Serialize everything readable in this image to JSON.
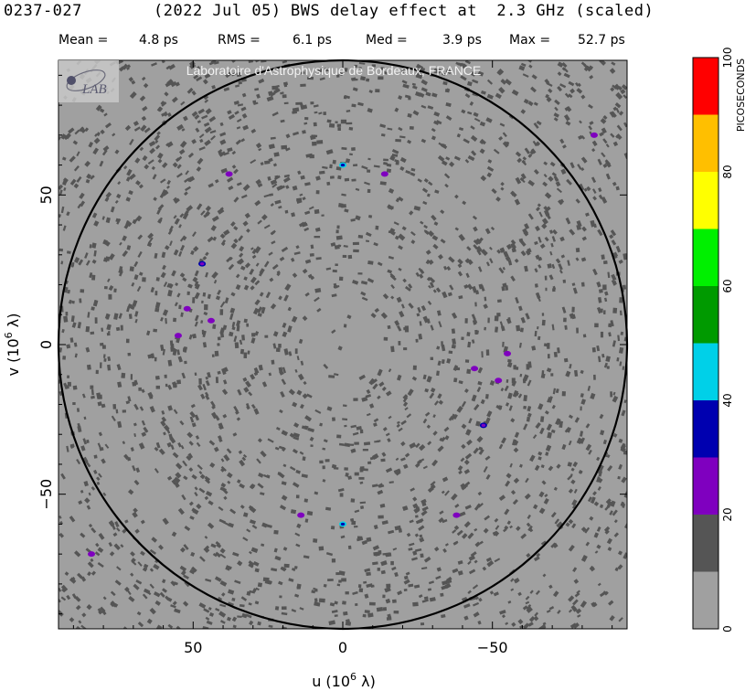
{
  "header": {
    "source": "0237-027",
    "date": "(2022 Jul 05)",
    "caption": "BWS delay effect at  2.3 GHz (scaled)"
  },
  "stats": [
    {
      "label": "Mean =",
      "value": "4.8 ps"
    },
    {
      "label": "RMS =",
      "value": "6.1 ps"
    },
    {
      "label": "Med =",
      "value": "3.9 ps"
    },
    {
      "label": "Max =",
      "value": "52.7 ps"
    }
  ],
  "logo": {
    "text": "LAB"
  },
  "watermark": "Laboratoire d'Astrophysique de Bordeaux, FRANCE",
  "chart_data": {
    "type": "heatmap",
    "xlabel": "u  (10",
    "xlabel_exp": "6",
    "xlabel_unit": " λ)",
    "ylabel": "v  (10",
    "ylabel_exp": "6",
    "ylabel_unit": " λ)",
    "xlim": [
      95,
      -95
    ],
    "ylim": [
      -95,
      95
    ],
    "xticks": [
      50,
      0,
      -50
    ],
    "xtick_labels": [
      "50",
      "0",
      "−50"
    ],
    "yticks": [
      50,
      0,
      -50
    ],
    "ytick_labels": [
      "50",
      "0",
      "−50"
    ],
    "circle_radius": 95,
    "background_color": "#a0a0a0",
    "colorbar": {
      "label": "PICOSECONDS",
      "min": 0,
      "max": 100,
      "ticks": [
        0,
        20,
        40,
        60,
        80,
        100
      ],
      "bins": [
        {
          "from": 0,
          "to": 10,
          "color": "#a0a0a0"
        },
        {
          "from": 10,
          "to": 20,
          "color": "#555555"
        },
        {
          "from": 20,
          "to": 30,
          "color": "#7f00bf"
        },
        {
          "from": 30,
          "to": 40,
          "color": "#0000b0"
        },
        {
          "from": 40,
          "to": 50,
          "color": "#00d0e8"
        },
        {
          "from": 50,
          "to": 60,
          "color": "#009a00"
        },
        {
          "from": 60,
          "to": 70,
          "color": "#00f000"
        },
        {
          "from": 70,
          "to": 80,
          "color": "#ffff00"
        },
        {
          "from": 80,
          "to": 90,
          "color": "#ffbf00"
        },
        {
          "from": 90,
          "to": 100,
          "color": "#ff0000"
        }
      ]
    },
    "hotspots": [
      {
        "u": 0,
        "v": 60,
        "ps": 42
      },
      {
        "u": 0,
        "v": -60,
        "ps": 42
      },
      {
        "u": 47,
        "v": 27,
        "ps": 33
      },
      {
        "u": -47,
        "v": -27,
        "ps": 33
      },
      {
        "u": 52,
        "v": 12,
        "ps": 25
      },
      {
        "u": -52,
        "v": -12,
        "ps": 25
      },
      {
        "u": 44,
        "v": 8,
        "ps": 24
      },
      {
        "u": -44,
        "v": -8,
        "ps": 24
      },
      {
        "u": 38,
        "v": 57,
        "ps": 22
      },
      {
        "u": -38,
        "v": -57,
        "ps": 22
      },
      {
        "u": -14,
        "v": 57,
        "ps": 22
      },
      {
        "u": 14,
        "v": -57,
        "ps": 22
      },
      {
        "u": -84,
        "v": 70,
        "ps": 21
      },
      {
        "u": 84,
        "v": -70,
        "ps": 21
      },
      {
        "u": 55,
        "v": 3,
        "ps": 22
      },
      {
        "u": -55,
        "v": -3,
        "ps": 22
      }
    ]
  }
}
